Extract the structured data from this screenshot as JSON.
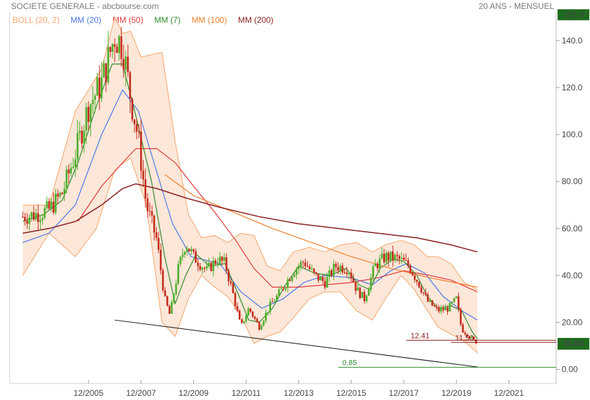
{
  "header": {
    "title": "SOCIETE GENERALE - abcbourse.com",
    "period": "20 ANS - MENSUEL"
  },
  "colors": {
    "boll": "#f5a56a",
    "boll_fill": "#fde3d2",
    "mm20": "#4a78e8",
    "mm50": "#e03a3a",
    "mm7": "#2e8b2e",
    "mm100": "#ef7f2a",
    "mm200": "#8b1f1f",
    "up": "#4cae2b",
    "down": "#c22b1b",
    "last_box": "#1f6b1f",
    "trend": "#111111",
    "low_line": "#2e8b2e",
    "level_line": "#8b1f1f"
  },
  "legend": [
    {
      "label": "BOLL (20, 2)",
      "color": "#f5a56a"
    },
    {
      "label": "MM (20)",
      "color": "#4a78e8"
    },
    {
      "label": "MM (50)",
      "color": "#e03a3a"
    },
    {
      "label": "MM (7)",
      "color": "#2e8b2e"
    },
    {
      "label": "MM (100)",
      "color": "#ef7f2a"
    },
    {
      "label": "MM (200)",
      "color": "#8b1f1f"
    }
  ],
  "chart_data": {
    "type": "line",
    "title": "SOCIETE GENERALE",
    "frequency": "monthly",
    "x_ticks": [
      "12/2005",
      "12/2007",
      "12/2009",
      "12/2011",
      "12/2013",
      "12/2015",
      "12/2017",
      "12/2019",
      "12/2021"
    ],
    "y_ticks": [
      "0.00",
      "20.00",
      "40.00",
      "60.00",
      "80.00",
      "100.0",
      "120.0",
      "140.0"
    ],
    "ylim": [
      -6,
      152
    ],
    "xlim": [
      2003.0,
      2023.8
    ],
    "close_series": [
      [
        2003.5,
        65
      ],
      [
        2004.0,
        66
      ],
      [
        2004.5,
        68
      ],
      [
        2005.0,
        75
      ],
      [
        2005.5,
        92
      ],
      [
        2006.0,
        112
      ],
      [
        2006.5,
        122
      ],
      [
        2007.0,
        142
      ],
      [
        2007.3,
        138
      ],
      [
        2007.6,
        116
      ],
      [
        2007.9,
        98
      ],
      [
        2008.2,
        70
      ],
      [
        2008.6,
        55
      ],
      [
        2008.9,
        30
      ],
      [
        2009.1,
        23
      ],
      [
        2009.4,
        42
      ],
      [
        2009.7,
        54
      ],
      [
        2010.0,
        48
      ],
      [
        2010.5,
        42
      ],
      [
        2010.9,
        47
      ],
      [
        2011.2,
        45
      ],
      [
        2011.5,
        32
      ],
      [
        2011.8,
        18
      ],
      [
        2012.1,
        26
      ],
      [
        2012.5,
        18
      ],
      [
        2012.9,
        27
      ],
      [
        2013.3,
        33
      ],
      [
        2013.8,
        42
      ],
      [
        2014.2,
        46
      ],
      [
        2014.6,
        40
      ],
      [
        2015.0,
        37
      ],
      [
        2015.4,
        44
      ],
      [
        2015.9,
        43
      ],
      [
        2016.2,
        34
      ],
      [
        2016.5,
        30
      ],
      [
        2016.9,
        44
      ],
      [
        2017.3,
        48
      ],
      [
        2017.8,
        47
      ],
      [
        2018.2,
        44
      ],
      [
        2018.6,
        36
      ],
      [
        2018.9,
        29
      ],
      [
        2019.3,
        25
      ],
      [
        2019.7,
        26
      ],
      [
        2020.0,
        30
      ],
      [
        2020.2,
        17
      ],
      [
        2020.5,
        14
      ],
      [
        2020.8,
        11.04
      ]
    ],
    "series": [
      {
        "name": "MM (20)",
        "points": [
          [
            2003.5,
            54
          ],
          [
            2004.5,
            58
          ],
          [
            2005.5,
            70
          ],
          [
            2006.5,
            100
          ],
          [
            2007.3,
            119
          ],
          [
            2007.9,
            110
          ],
          [
            2008.6,
            84
          ],
          [
            2009.2,
            62
          ],
          [
            2009.9,
            48
          ],
          [
            2011.0,
            45
          ],
          [
            2011.8,
            33
          ],
          [
            2012.6,
            26
          ],
          [
            2013.4,
            30
          ],
          [
            2014.2,
            37
          ],
          [
            2015.0,
            40
          ],
          [
            2016.0,
            39
          ],
          [
            2016.8,
            36
          ],
          [
            2017.5,
            42
          ],
          [
            2018.1,
            45
          ],
          [
            2018.8,
            41
          ],
          [
            2019.5,
            31
          ],
          [
            2020.2,
            25
          ],
          [
            2020.8,
            21
          ]
        ]
      },
      {
        "name": "MM (50)",
        "points": [
          [
            2005.6,
            63
          ],
          [
            2006.5,
            78
          ],
          [
            2007.3,
            88
          ],
          [
            2007.8,
            94
          ],
          [
            2008.6,
            94
          ],
          [
            2009.3,
            88
          ],
          [
            2010.0,
            78
          ],
          [
            2010.8,
            67
          ],
          [
            2011.6,
            55
          ],
          [
            2012.3,
            43
          ],
          [
            2013.0,
            35
          ],
          [
            2014.0,
            35
          ],
          [
            2015.0,
            36
          ],
          [
            2016.0,
            37
          ],
          [
            2017.0,
            39
          ],
          [
            2018.0,
            42
          ],
          [
            2019.0,
            40
          ],
          [
            2019.8,
            38
          ],
          [
            2020.8,
            33
          ]
        ]
      },
      {
        "name": "MM (7)",
        "points": [
          [
            2003.5,
            63
          ],
          [
            2004.3,
            66
          ],
          [
            2005.0,
            72
          ],
          [
            2005.6,
            88
          ],
          [
            2006.3,
            112
          ],
          [
            2006.9,
            130
          ],
          [
            2007.3,
            130
          ],
          [
            2007.8,
            108
          ],
          [
            2008.4,
            80
          ],
          [
            2008.9,
            48
          ],
          [
            2009.3,
            28
          ],
          [
            2009.7,
            40
          ],
          [
            2010.1,
            49
          ],
          [
            2010.6,
            44
          ],
          [
            2011.2,
            45
          ],
          [
            2011.7,
            32
          ],
          [
            2012.1,
            21
          ],
          [
            2012.5,
            20
          ],
          [
            2013.0,
            26
          ],
          [
            2013.5,
            36
          ],
          [
            2014.0,
            44
          ],
          [
            2014.6,
            41
          ],
          [
            2015.2,
            40
          ],
          [
            2015.8,
            43
          ],
          [
            2016.3,
            36
          ],
          [
            2016.7,
            34
          ],
          [
            2017.1,
            43
          ],
          [
            2017.6,
            47
          ],
          [
            2018.0,
            46
          ],
          [
            2018.5,
            40
          ],
          [
            2018.9,
            31
          ],
          [
            2019.3,
            26
          ],
          [
            2019.8,
            27
          ],
          [
            2020.2,
            25
          ],
          [
            2020.6,
            16
          ],
          [
            2020.8,
            13
          ]
        ]
      },
      {
        "name": "MM (100)",
        "points": [
          [
            2008.9,
            83
          ],
          [
            2010.0,
            74
          ],
          [
            2011.5,
            67
          ],
          [
            2013.0,
            60
          ],
          [
            2014.5,
            54
          ],
          [
            2016.0,
            48
          ],
          [
            2017.5,
            43
          ],
          [
            2019.0,
            39
          ],
          [
            2020.8,
            35
          ]
        ]
      },
      {
        "name": "MM (200)",
        "points": [
          [
            2003.5,
            58
          ],
          [
            2004.5,
            60
          ],
          [
            2005.5,
            63
          ],
          [
            2006.5,
            70
          ],
          [
            2007.3,
            77
          ],
          [
            2007.8,
            79
          ],
          [
            2008.6,
            77
          ],
          [
            2009.7,
            73
          ],
          [
            2011.0,
            69
          ],
          [
            2012.5,
            65
          ],
          [
            2014.0,
            62
          ],
          [
            2015.5,
            60
          ],
          [
            2017.0,
            58
          ],
          [
            2018.5,
            56
          ],
          [
            2019.8,
            53
          ],
          [
            2020.8,
            50
          ]
        ]
      }
    ],
    "bollinger": {
      "upper": [
        [
          2003.5,
          70
        ],
        [
          2004.5,
          70
        ],
        [
          2005.5,
          110
        ],
        [
          2006.5,
          128
        ],
        [
          2007.0,
          150
        ],
        [
          2007.3,
          143
        ],
        [
          2007.6,
          144
        ],
        [
          2008.0,
          133
        ],
        [
          2008.8,
          135
        ],
        [
          2009.3,
          97
        ],
        [
          2009.8,
          66
        ],
        [
          2010.3,
          56
        ],
        [
          2010.8,
          57
        ],
        [
          2011.3,
          54
        ],
        [
          2011.8,
          58
        ],
        [
          2012.3,
          57
        ],
        [
          2012.8,
          44
        ],
        [
          2013.3,
          42
        ],
        [
          2013.8,
          50
        ],
        [
          2014.4,
          52
        ],
        [
          2015.0,
          50
        ],
        [
          2015.6,
          53
        ],
        [
          2016.2,
          54
        ],
        [
          2016.8,
          50
        ],
        [
          2017.3,
          53
        ],
        [
          2017.9,
          55
        ],
        [
          2018.4,
          53
        ],
        [
          2018.9,
          48
        ],
        [
          2019.3,
          48
        ],
        [
          2019.8,
          45
        ],
        [
          2020.3,
          37
        ],
        [
          2020.8,
          34
        ]
      ],
      "lower": [
        [
          2003.5,
          40
        ],
        [
          2004.5,
          58
        ],
        [
          2005.5,
          48
        ],
        [
          2006.3,
          60
        ],
        [
          2007.0,
          85
        ],
        [
          2007.6,
          90
        ],
        [
          2008.2,
          70
        ],
        [
          2008.8,
          20
        ],
        [
          2009.3,
          14
        ],
        [
          2009.8,
          30
        ],
        [
          2010.3,
          40
        ],
        [
          2010.8,
          35
        ],
        [
          2011.3,
          31
        ],
        [
          2011.8,
          23
        ],
        [
          2012.3,
          11
        ],
        [
          2012.8,
          14
        ],
        [
          2013.3,
          16
        ],
        [
          2013.8,
          22
        ],
        [
          2014.4,
          30
        ],
        [
          2015.0,
          33
        ],
        [
          2015.6,
          33
        ],
        [
          2016.2,
          25
        ],
        [
          2016.8,
          21
        ],
        [
          2017.3,
          30
        ],
        [
          2017.9,
          40
        ],
        [
          2018.4,
          34
        ],
        [
          2018.9,
          25
        ],
        [
          2019.3,
          18
        ],
        [
          2019.8,
          15
        ],
        [
          2020.3,
          12
        ],
        [
          2020.8,
          7
        ]
      ]
    },
    "trendline": [
      [
        2007.0,
        21
      ],
      [
        2020.8,
        1
      ]
    ],
    "levels": [
      {
        "value": 12.41,
        "label": "12.41",
        "color": "#8b1f1f",
        "start": 2018.1
      },
      {
        "value": 11.5,
        "label": "11.50",
        "color": "#8b1f1f",
        "start": 2019.8
      },
      {
        "value": 0.85,
        "label": "0.85",
        "color": "#2e8b2e",
        "start": 2015.5
      }
    ],
    "last_price": "11.04",
    "top_label": "151.0"
  }
}
